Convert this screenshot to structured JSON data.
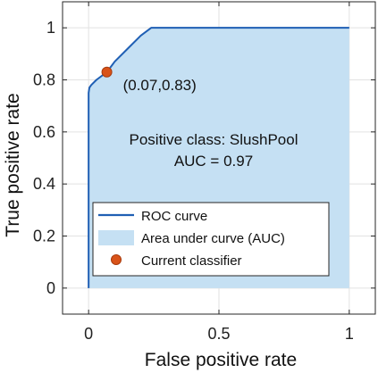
{
  "chart_data": {
    "type": "area",
    "xlabel": "False positive rate",
    "ylabel": "True positive rate",
    "xlim": [
      0,
      1
    ],
    "ylim": [
      0,
      1
    ],
    "xticks": [
      "0",
      "0.5",
      "1"
    ],
    "xtick_values": [
      0,
      0.5,
      1
    ],
    "yticks": [
      "0",
      "0.2",
      "0.4",
      "0.6",
      "0.8",
      "1"
    ],
    "ytick_values": [
      0,
      0.2,
      0.4,
      0.6,
      0.8,
      1
    ],
    "grid": true,
    "legend_position": "lower-left",
    "series": [
      {
        "name": "ROC curve",
        "kind": "line",
        "color": "#1f5fb4",
        "x": [
          0,
          0,
          0.003,
          0.01,
          0.03,
          0.07,
          0.1,
          0.15,
          0.2,
          0.24,
          1
        ],
        "y": [
          0,
          0.75,
          0.77,
          0.78,
          0.8,
          0.83,
          0.87,
          0.92,
          0.97,
          1.0,
          1.0
        ]
      },
      {
        "name": "Area under curve (AUC)",
        "kind": "area",
        "color": "#c5e0f3"
      },
      {
        "name": "Current classifier",
        "kind": "scatter",
        "color": "#d95319",
        "x": [
          0.07
        ],
        "y": [
          0.83
        ]
      }
    ],
    "annotations": {
      "point_label": "(0.07,0.83)",
      "class_line": "Positive class: SlushPool",
      "auc_line": "AUC = 0.97"
    }
  }
}
